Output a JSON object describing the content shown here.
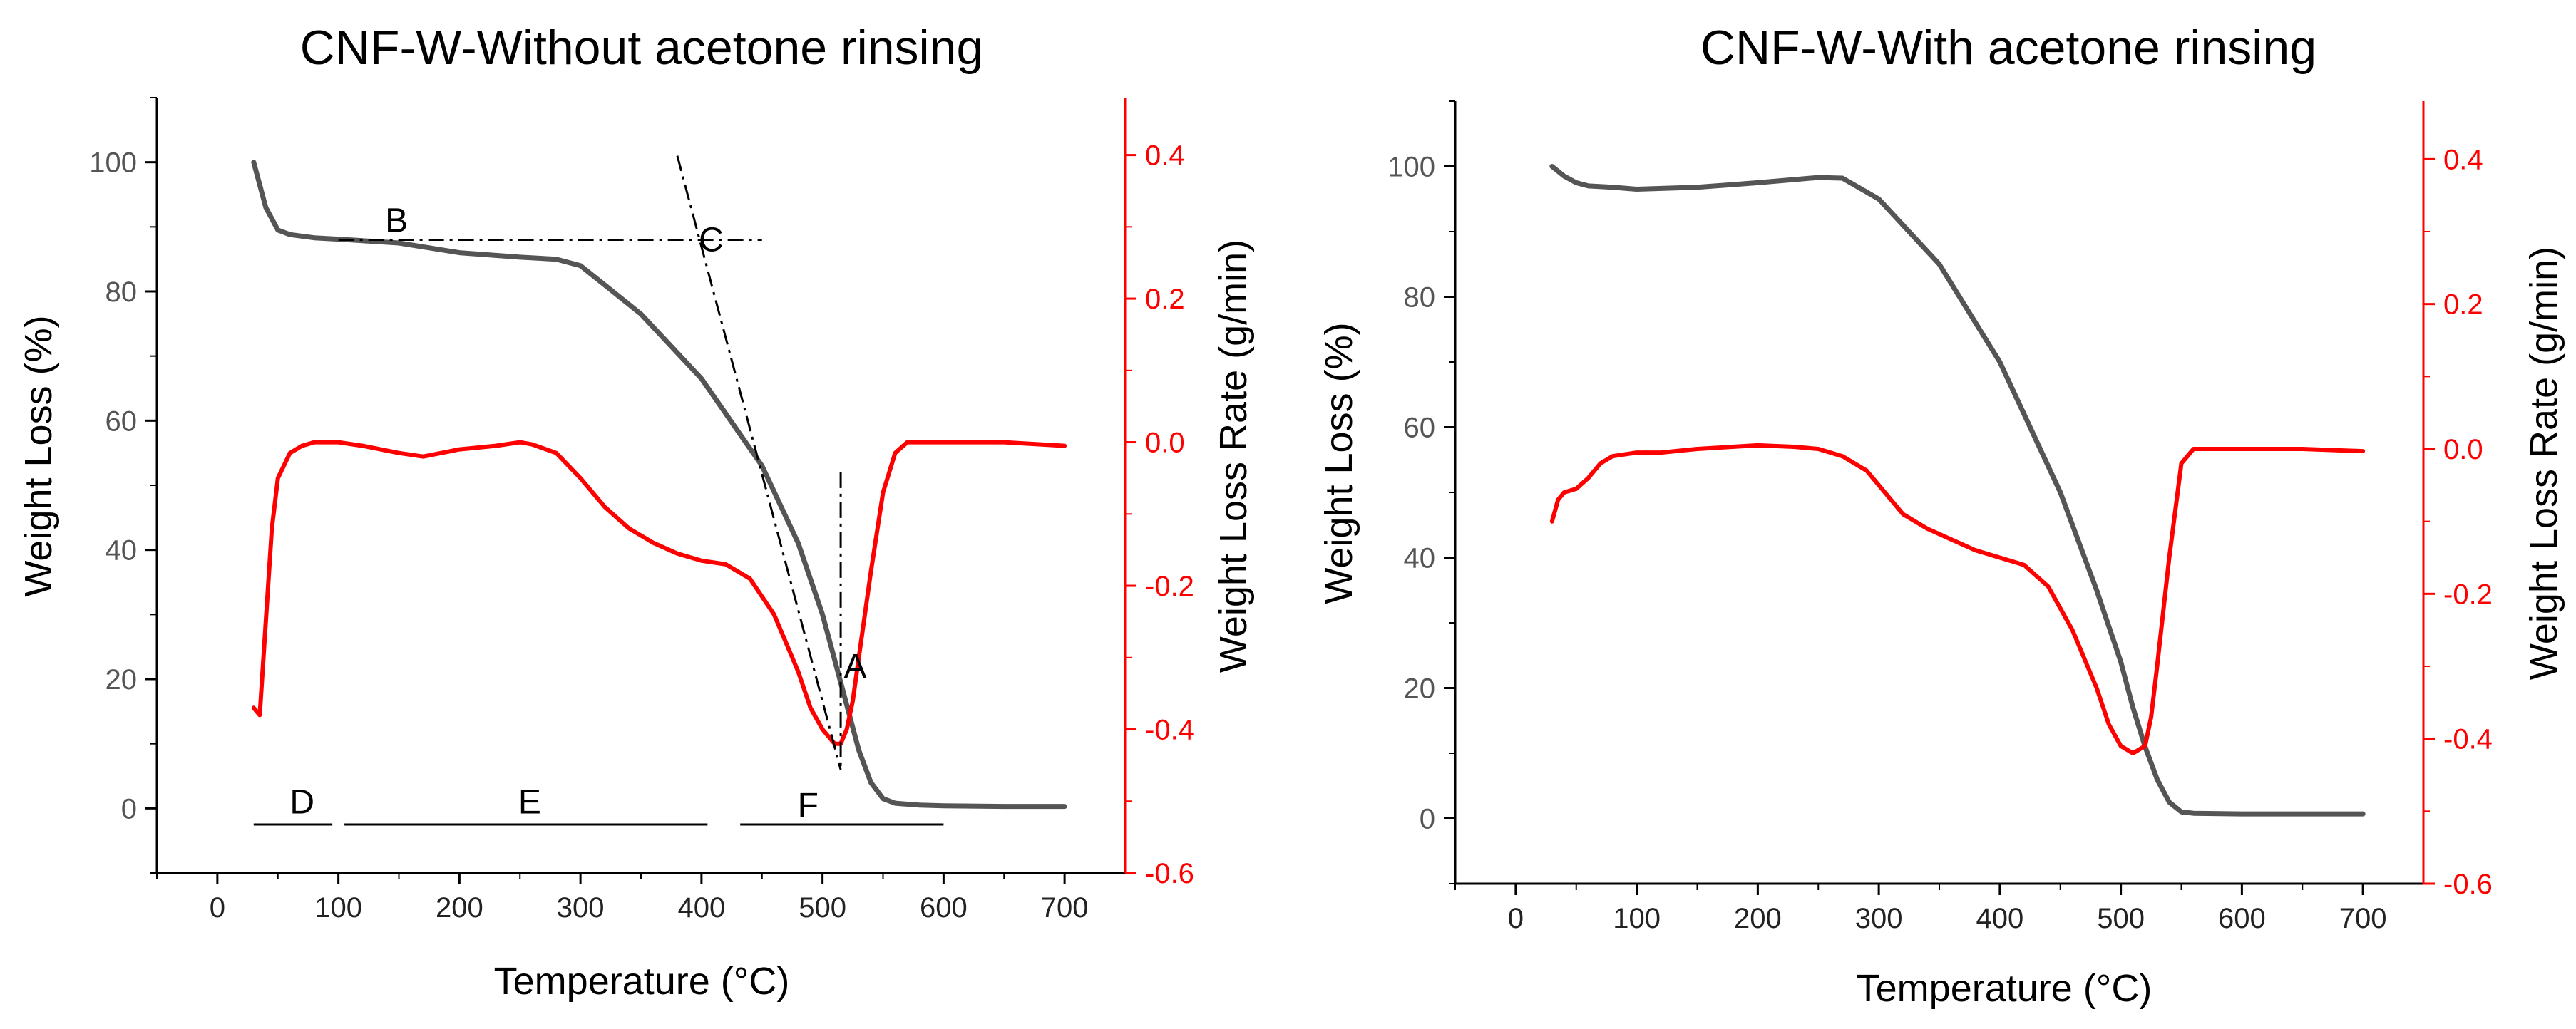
{
  "colors": {
    "weight": "#555555",
    "rate": "#ff0000",
    "axis": "#000000",
    "right_axis": "#ff0000",
    "annotation": "#000000"
  },
  "chart_data": [
    {
      "type": "line",
      "title": "CNF-W-Without acetone rinsing",
      "xlabel": "Temperature (°C)",
      "ylabel": "Weight Loss (%)",
      "y2label": "Weight Loss Rate (g/min)",
      "xlim": [
        -50,
        750
      ],
      "ylim": [
        -10,
        110
      ],
      "y2lim": [
        -0.6,
        0.48
      ],
      "xticks": [
        "0",
        "100",
        "200",
        "300",
        "400",
        "500",
        "600",
        "700"
      ],
      "yticks": [
        "0",
        "20",
        "40",
        "60",
        "80",
        "100"
      ],
      "y2ticks": [
        "-0.6",
        "-0.4",
        "-0.2",
        "0.0",
        "0.2",
        "0.4"
      ],
      "series": [
        {
          "name": "Weight Loss",
          "axis": "left",
          "x": [
            30,
            40,
            50,
            60,
            80,
            100,
            150,
            200,
            250,
            280,
            300,
            320,
            350,
            400,
            450,
            480,
            500,
            510,
            520,
            530,
            540,
            550,
            560,
            580,
            600,
            650,
            700
          ],
          "y": [
            100,
            93,
            89.5,
            88.8,
            88.3,
            88.1,
            87.5,
            86,
            85.3,
            85,
            84,
            81,
            76.5,
            66.5,
            53,
            41,
            30,
            23,
            16,
            9,
            4,
            1.5,
            0.8,
            0.5,
            0.4,
            0.3,
            0.3
          ]
        },
        {
          "name": "Weight Loss Rate",
          "axis": "right",
          "x": [
            30,
            35,
            40,
            45,
            50,
            60,
            70,
            80,
            100,
            120,
            150,
            170,
            200,
            230,
            250,
            260,
            280,
            300,
            320,
            340,
            360,
            380,
            400,
            420,
            440,
            460,
            480,
            490,
            500,
            510,
            515,
            520,
            525,
            530,
            540,
            550,
            560,
            570,
            580,
            600,
            650,
            700
          ],
          "y": [
            -0.37,
            -0.38,
            -0.25,
            -0.12,
            -0.05,
            -0.015,
            -0.005,
            0.0,
            0.0,
            -0.005,
            -0.015,
            -0.02,
            -0.01,
            -0.005,
            0.0,
            -0.003,
            -0.015,
            -0.05,
            -0.09,
            -0.12,
            -0.14,
            -0.155,
            -0.165,
            -0.17,
            -0.19,
            -0.24,
            -0.32,
            -0.37,
            -0.4,
            -0.42,
            -0.42,
            -0.4,
            -0.36,
            -0.3,
            -0.18,
            -0.07,
            -0.015,
            0.0,
            0.0,
            0.0,
            0.0,
            -0.005
          ]
        }
      ],
      "annotations": [
        {
          "label": "A",
          "x": 527,
          "y": 22
        },
        {
          "label": "B",
          "x": 148,
          "y": 91
        },
        {
          "label": "C",
          "x": 408,
          "y": 88
        },
        {
          "label": "D",
          "x": 70,
          "y": 1
        },
        {
          "label": "E",
          "x": 258,
          "y": 1
        },
        {
          "label": "F",
          "x": 488,
          "y": 0.5
        }
      ],
      "guide_lines": [
        {
          "from": [
            100,
            88
          ],
          "to": [
            450,
            88
          ]
        },
        {
          "from": [
            380,
            101
          ],
          "to": [
            515,
            6
          ]
        },
        {
          "from": [
            515,
            52
          ],
          "to": [
            515,
            6
          ]
        }
      ],
      "range_bars": [
        {
          "label": "D",
          "from": 30,
          "to": 95,
          "y": -2.5
        },
        {
          "label": "E",
          "from": 105,
          "to": 405,
          "y": -2.5
        },
        {
          "label": "F",
          "from": 432,
          "to": 600,
          "y": -2.5
        }
      ]
    },
    {
      "type": "line",
      "title": "CNF-W-With acetone rinsing",
      "xlabel": "Temperature (°C)",
      "ylabel": "Weight Loss (%)",
      "y2label": "Weight Loss Rate (g/min)",
      "xlim": [
        -50,
        750
      ],
      "ylim": [
        -10,
        110
      ],
      "y2lim": [
        -0.6,
        0.48
      ],
      "xticks": [
        "0",
        "100",
        "200",
        "300",
        "400",
        "500",
        "600",
        "700"
      ],
      "yticks": [
        "0",
        "20",
        "40",
        "60",
        "80",
        "100"
      ],
      "y2ticks": [
        "-0.6",
        "-0.4",
        "-0.2",
        "0.0",
        "0.2",
        "0.4"
      ],
      "series": [
        {
          "name": "Weight Loss",
          "axis": "left",
          "x": [
            30,
            40,
            50,
            60,
            80,
            100,
            150,
            200,
            250,
            270,
            300,
            350,
            400,
            450,
            480,
            500,
            510,
            520,
            530,
            540,
            550,
            560,
            600,
            650,
            700
          ],
          "y": [
            100,
            98.5,
            97.5,
            97,
            96.8,
            96.5,
            96.8,
            97.5,
            98.3,
            98.2,
            95,
            85,
            70,
            50,
            35,
            24,
            17,
            11,
            6,
            2.5,
            1,
            0.8,
            0.7,
            0.7,
            0.7
          ]
        },
        {
          "name": "Weight Loss Rate",
          "axis": "right",
          "x": [
            30,
            35,
            40,
            50,
            60,
            70,
            80,
            100,
            120,
            150,
            200,
            230,
            250,
            270,
            290,
            300,
            320,
            340,
            360,
            380,
            400,
            420,
            440,
            460,
            480,
            490,
            500,
            510,
            520,
            525,
            530,
            540,
            550,
            560,
            580,
            600,
            650,
            700
          ],
          "y": [
            -0.1,
            -0.07,
            -0.06,
            -0.055,
            -0.04,
            -0.02,
            -0.01,
            -0.005,
            -0.005,
            0.0,
            0.005,
            0.003,
            0.0,
            -0.01,
            -0.03,
            -0.05,
            -0.09,
            -0.11,
            -0.125,
            -0.14,
            -0.15,
            -0.16,
            -0.19,
            -0.25,
            -0.33,
            -0.38,
            -0.41,
            -0.42,
            -0.41,
            -0.37,
            -0.3,
            -0.15,
            -0.02,
            0.0,
            0.0,
            0.0,
            0.0,
            -0.003
          ]
        }
      ]
    }
  ]
}
